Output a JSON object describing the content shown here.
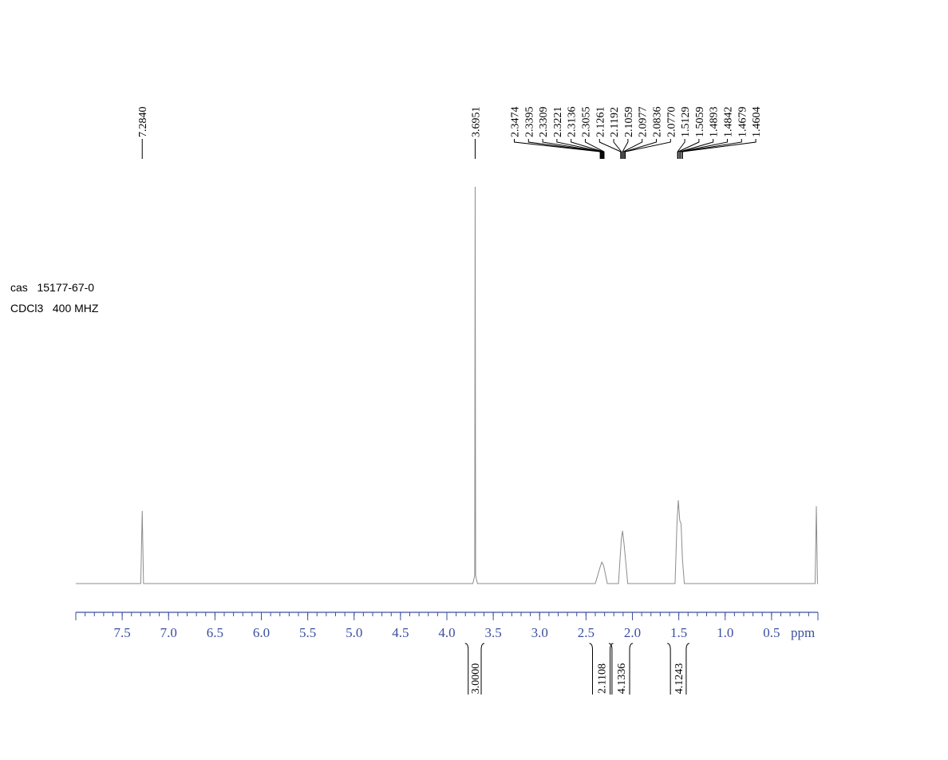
{
  "chart_data": {
    "type": "nmr",
    "annotations": [
      "cas   15177-67-0",
      "CDCl3   400 MHZ"
    ],
    "xlabel": "ppm",
    "xlim": [
      8,
      0
    ],
    "xticks": [
      7.5,
      {
        "value": 7,
        "label": "7.0"
      },
      6.5,
      {
        "value": 6,
        "label": "6.0"
      },
      5.5,
      {
        "value": 5,
        "label": "5.0"
      },
      4.5,
      {
        "value": 4,
        "label": "4.0"
      },
      3.5,
      {
        "value": 3,
        "label": "3.0"
      },
      2.5,
      {
        "value": 2,
        "label": "2.0"
      },
      1.5,
      {
        "value": 1,
        "label": "1.0"
      },
      0.5
    ],
    "xminor_step": 0.1,
    "ylim": [
      0,
      100
    ],
    "color": "#8c8c8c",
    "x": [
      8,
      7.3,
      7.284,
      7.27,
      3.72,
      3.7,
      3.6951,
      3.69,
      3.67,
      2.4,
      2.35,
      2.33,
      2.31,
      2.27,
      2.15,
      2.12,
      2.106,
      2.09,
      2.05,
      1.54,
      1.52,
      1.505,
      1.49,
      1.475,
      1.46,
      1.44,
      0.03,
      0.017,
      0.005,
      0
    ],
    "values": [
      0,
      0,
      18.3,
      0,
      0,
      2,
      100,
      2,
      0,
      0,
      4,
      5.4,
      4.5,
      0,
      0,
      11,
      13.3,
      10,
      0,
      0,
      15,
      21,
      16,
      15,
      6,
      0,
      0,
      19.5,
      0,
      0
    ],
    "peak_labels": [
      {
        "value": 7.284,
        "label": "7.2840"
      },
      3.6951,
      2.3474,
      2.3395,
      2.3309,
      2.3221,
      2.3136,
      2.3055,
      2.1261,
      2.1192,
      2.1059,
      2.0977,
      2.0836,
      {
        "value": 2.077,
        "label": "2.0770"
      },
      1.5129,
      1.5059,
      1.4893,
      1.4842,
      1.4679,
      1.4604
    ],
    "integrals": [
      {
        "range": [
          3.77,
          3.63
        ],
        "value": 3,
        "label": "3.0000"
      },
      {
        "range": [
          2.43,
          2.24
        ],
        "value": 2.1108
      },
      {
        "range": [
          2.22,
          2.03
        ],
        "value": 4.1336
      },
      {
        "range": [
          1.59,
          1.42
        ],
        "value": 4.1243
      }
    ]
  }
}
